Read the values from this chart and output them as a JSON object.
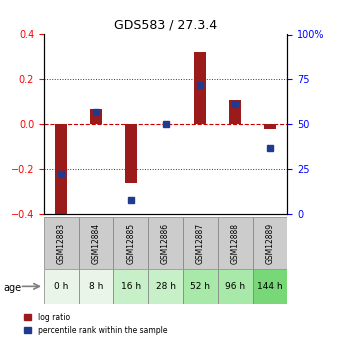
{
  "title": "GDS583 / 27.3.4",
  "samples": [
    "GSM12883",
    "GSM12884",
    "GSM12885",
    "GSM12886",
    "GSM12887",
    "GSM12888",
    "GSM12889"
  ],
  "ages": [
    "0 h",
    "8 h",
    "16 h",
    "28 h",
    "52 h",
    "96 h",
    "144 h"
  ],
  "log_ratios": [
    -0.42,
    0.07,
    -0.26,
    0.0,
    0.32,
    0.11,
    -0.02
  ],
  "percentile_ranks": [
    22,
    57,
    8,
    50,
    72,
    61,
    37
  ],
  "bar_color": "#9B1B1B",
  "pct_color": "#1F3A8F",
  "zero_line_color": "#CC0000",
  "dotted_line_color": "#333333",
  "ylim": [
    -0.4,
    0.4
  ],
  "yticks_left": [
    -0.4,
    -0.2,
    0.0,
    0.2,
    0.4
  ],
  "yticks_right": [
    0,
    25,
    50,
    75,
    100
  ],
  "age_colors": [
    "#e8f5e8",
    "#e8f5e8",
    "#c8f0c8",
    "#c8f0c8",
    "#a8e8a8",
    "#a8e8a8",
    "#78d878"
  ],
  "bg_color": "#ffffff",
  "label_log_ratio": "log ratio",
  "label_pct": "percentile rank within the sample"
}
